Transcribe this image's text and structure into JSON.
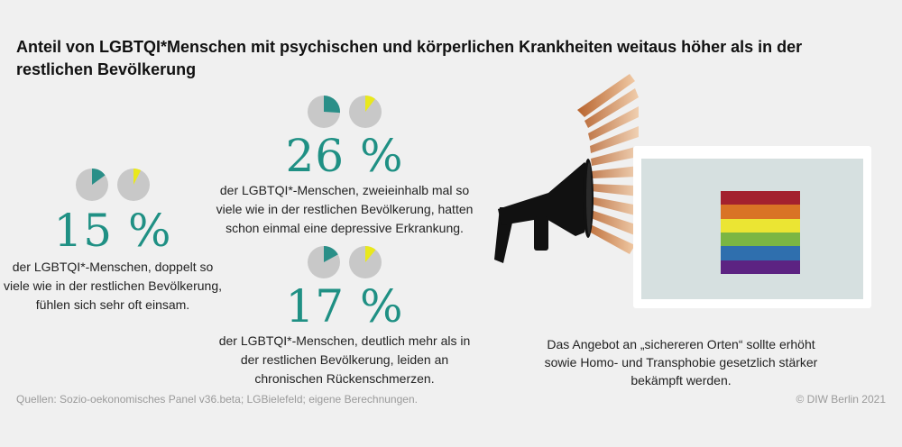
{
  "title": "Anteil von LGBTQI*Menschen mit psychischen und körperlichen Krankheiten weitaus höher als in der restlichen Bevölkerung",
  "colors": {
    "accent": "#1f9084",
    "lgbtqi_slice": "#2a8f88",
    "rest_slice": "#e9e81c",
    "pie_base": "#c8c8c8",
    "flag": [
      "#a3212e",
      "#d97325",
      "#ebe533",
      "#7bb643",
      "#2f6fae",
      "#5c2382"
    ]
  },
  "chart_data": {
    "type": "pie",
    "title": "Anteil von LGBTQI*Menschen mit psychischen und körperlichen Krankheiten weitaus höher als in der restlichen Bevölkerung",
    "legend": [
      "LGBTQI*-Menschen",
      "restliche Bevölkerung"
    ],
    "groups": [
      {
        "id": "lonely",
        "value_text": "15 %",
        "lgbtqi_share": 0.15,
        "rest_share": 0.075,
        "desc": "der LGBTQI*-Menschen, doppelt so viele wie in der restlichen Bevölkerung, fühlen sich sehr oft einsam."
      },
      {
        "id": "depression",
        "value_text": "26 %",
        "lgbtqi_share": 0.26,
        "rest_share": 0.104,
        "desc": "der LGBTQI*-Menschen, zweieinhalb mal so viele wie in der restlichen Bevölkerung, hatten schon einmal eine depressive Erkrankung."
      },
      {
        "id": "backpain",
        "value_text": "17 %",
        "lgbtqi_share": 0.17,
        "rest_share": 0.11,
        "desc": "der LGBTQI*-Menschen, deutlich mehr als in der restlichen Bevölkerung, leiden an chronischen Rückenschmerzen."
      }
    ]
  },
  "cta": "Das Angebot an „sichereren Orten“ sollte erhöht sowie Homo- und Transphobie gesetzlich stärker bekämpft werden.",
  "source": "Quellen: Sozio-oekonomisches Panel v36.beta; LGBielefeld; eigene Berechnungen.",
  "copyright": "© DIW Berlin 2021"
}
